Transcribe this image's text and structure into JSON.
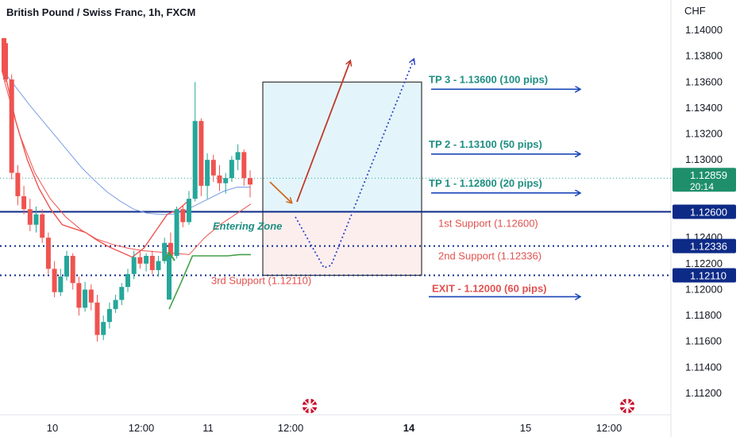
{
  "header": {
    "title": "British Pound / Swiss Franc, 1h, FXCM",
    "currency": "CHF"
  },
  "colors": {
    "up": "#26a69a",
    "down": "#ef5350",
    "tp": "#1e8f83",
    "support_text": "#e0524f",
    "arrow": "#1a47b8",
    "level_blue": "#0d2a87",
    "ma_blue": "#7c9ce6",
    "ma_red": "#ef5350",
    "green_line": "#43a047",
    "zone_top": "#e3f5fa",
    "zone_bottom": "#fdeeee",
    "dark_red_arrow": "#c0392b",
    "orange_arrow": "#d2691e",
    "dotted_path": "#2f45c8"
  },
  "chart_data": {
    "type": "candlestick",
    "title": "British Pound / Swiss Franc, 1h, FXCM",
    "ylabel": "CHF",
    "ylim": [
      1.1105,
      1.1425
    ],
    "y_ticks": [
      "1.14000",
      "1.13800",
      "1.13600",
      "1.13400",
      "1.13200",
      "1.13000",
      "1.12400",
      "1.12200",
      "1.12000",
      "1.11800",
      "1.11600",
      "1.11400",
      "1.11200"
    ],
    "x_ticks": [
      "10",
      "12:00",
      "11",
      "12:00",
      "14",
      "15",
      "12:00"
    ],
    "price_tags": [
      {
        "price": "1.12859",
        "sub": "20:14",
        "kind": "current"
      },
      {
        "price": "1.12600",
        "kind": "level"
      },
      {
        "price": "1.12336",
        "kind": "level"
      },
      {
        "price": "1.12110",
        "kind": "level"
      }
    ],
    "candles": [
      {
        "o": 1.139,
        "h": 1.1393,
        "l": 1.136,
        "c": 1.1362
      },
      {
        "o": 1.1362,
        "h": 1.1366,
        "l": 1.1285,
        "c": 1.129
      },
      {
        "o": 1.129,
        "h": 1.1296,
        "l": 1.1265,
        "c": 1.1272
      },
      {
        "o": 1.1272,
        "h": 1.128,
        "l": 1.1258,
        "c": 1.1262
      },
      {
        "o": 1.1262,
        "h": 1.127,
        "l": 1.1245,
        "c": 1.125
      },
      {
        "o": 1.125,
        "h": 1.1264,
        "l": 1.1244,
        "c": 1.1258
      },
      {
        "o": 1.1258,
        "h": 1.1262,
        "l": 1.1236,
        "c": 1.124
      },
      {
        "o": 1.124,
        "h": 1.1244,
        "l": 1.1212,
        "c": 1.1216
      },
      {
        "o": 1.1216,
        "h": 1.1222,
        "l": 1.1194,
        "c": 1.1198
      },
      {
        "o": 1.1198,
        "h": 1.1216,
        "l": 1.1195,
        "c": 1.121
      },
      {
        "o": 1.121,
        "h": 1.123,
        "l": 1.1207,
        "c": 1.1226
      },
      {
        "o": 1.1226,
        "h": 1.1228,
        "l": 1.12,
        "c": 1.1205
      },
      {
        "o": 1.1205,
        "h": 1.121,
        "l": 1.118,
        "c": 1.1186
      },
      {
        "o": 1.1186,
        "h": 1.1206,
        "l": 1.1183,
        "c": 1.12
      },
      {
        "o": 1.12,
        "h": 1.1204,
        "l": 1.1184,
        "c": 1.119
      },
      {
        "o": 1.119,
        "h": 1.1196,
        "l": 1.116,
        "c": 1.1165
      },
      {
        "o": 1.1165,
        "h": 1.118,
        "l": 1.1161,
        "c": 1.1175
      },
      {
        "o": 1.1175,
        "h": 1.119,
        "l": 1.117,
        "c": 1.1185
      },
      {
        "o": 1.1185,
        "h": 1.1196,
        "l": 1.1182,
        "c": 1.1192
      },
      {
        "o": 1.1192,
        "h": 1.1205,
        "l": 1.1188,
        "c": 1.1202
      },
      {
        "o": 1.1202,
        "h": 1.1216,
        "l": 1.1198,
        "c": 1.1212
      },
      {
        "o": 1.1212,
        "h": 1.123,
        "l": 1.1208,
        "c": 1.1225
      },
      {
        "o": 1.1225,
        "h": 1.123,
        "l": 1.1216,
        "c": 1.122
      },
      {
        "o": 1.122,
        "h": 1.1228,
        "l": 1.1214,
        "c": 1.1226
      },
      {
        "o": 1.1226,
        "h": 1.123,
        "l": 1.1212,
        "c": 1.1215
      },
      {
        "o": 1.1215,
        "h": 1.1226,
        "l": 1.121,
        "c": 1.1222
      },
      {
        "o": 1.1222,
        "h": 1.124,
        "l": 1.122,
        "c": 1.1236
      },
      {
        "o": 1.1236,
        "h": 1.1244,
        "l": 1.122,
        "c": 1.1226
      },
      {
        "o": 1.1226,
        "h": 1.1264,
        "l": 1.1224,
        "c": 1.1262
      },
      {
        "o": 1.1262,
        "h": 1.1265,
        "l": 1.1248,
        "c": 1.1252
      },
      {
        "o": 1.1252,
        "h": 1.1276,
        "l": 1.125,
        "c": 1.127
      },
      {
        "o": 1.127,
        "h": 1.136,
        "l": 1.1268,
        "c": 1.133
      },
      {
        "o": 1.133,
        "h": 1.1332,
        "l": 1.1272,
        "c": 1.128
      },
      {
        "o": 1.128,
        "h": 1.1305,
        "l": 1.127,
        "c": 1.13
      },
      {
        "o": 1.13,
        "h": 1.1304,
        "l": 1.1283,
        "c": 1.1288
      },
      {
        "o": 1.1288,
        "h": 1.1296,
        "l": 1.1276,
        "c": 1.1282
      },
      {
        "o": 1.1282,
        "h": 1.129,
        "l": 1.1274,
        "c": 1.1286
      },
      {
        "o": 1.1286,
        "h": 1.1303,
        "l": 1.1283,
        "c": 1.13
      },
      {
        "o": 1.13,
        "h": 1.1312,
        "l": 1.1292,
        "c": 1.1306
      },
      {
        "o": 1.1306,
        "h": 1.1308,
        "l": 1.128,
        "c": 1.1286
      },
      {
        "o": 1.1286,
        "h": 1.1292,
        "l": 1.1271,
        "c": 1.1281
      }
    ],
    "levels": [
      {
        "price": 1.126,
        "label": "1st Support  (1.12600)",
        "style": "solid"
      },
      {
        "price": 1.12336,
        "label": "2nd Support (1.12336)",
        "style": "dotted"
      },
      {
        "price": 1.1211,
        "label": "3rd Support (1.12110)",
        "style": "dotted"
      }
    ],
    "targets": [
      {
        "price": 1.136,
        "label": "TP 3 - 1.13600 (100 pips)",
        "kind": "tp"
      },
      {
        "price": 1.131,
        "label": "TP 2 - 1.13100 (50 pips)",
        "kind": "tp"
      },
      {
        "price": 1.128,
        "label": "TP 1 - 1.12800 (20 pips)",
        "kind": "tp"
      },
      {
        "price": 1.12,
        "label": "EXIT - 1.12000 (60 pips)",
        "kind": "exit"
      }
    ],
    "entry_zone": {
      "top": 1.136,
      "mid": 1.126,
      "bottom": 1.1211,
      "label": "Entering Zone"
    },
    "current_price_line": 1.12859,
    "ma_blue": [
      1.1368,
      1.1355,
      1.1342,
      1.133,
      1.1318,
      1.1306,
      1.1294,
      1.1284,
      1.1275,
      1.1268,
      1.1262,
      1.1259,
      1.1258,
      1.1258,
      1.1261,
      1.1266,
      1.1271,
      1.1276,
      1.1279,
      1.1279
    ],
    "ma_red_fast": [
      1.137,
      1.133,
      1.13,
      1.1278,
      1.1262,
      1.125,
      1.1247,
      1.1244,
      1.1238,
      1.1233,
      1.1229,
      1.1225,
      1.1232,
      1.1245,
      1.1258,
      1.1262,
      1.127
    ],
    "ma_red_slow": [
      1.1362,
      1.132,
      1.129,
      1.127,
      1.1256,
      1.1246,
      1.1239,
      1.1235,
      1.1232,
      1.123,
      1.1229,
      1.1228,
      1.1227,
      1.124,
      1.125,
      1.1258,
      1.1266
    ],
    "green_line": [
      1.1185,
      1.1205,
      1.1226,
      1.1226,
      1.1226,
      1.1226,
      1.1227,
      1.1227
    ]
  }
}
